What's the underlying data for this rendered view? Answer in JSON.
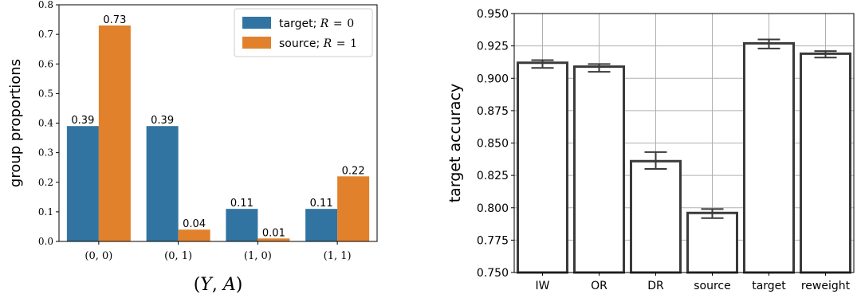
{
  "chart_data": [
    {
      "type": "bar",
      "title": "",
      "xlabel": "(Y, A)",
      "ylabel": "group proportions",
      "ylim": [
        0,
        0.8
      ],
      "yticks": [
        "0.0",
        "0.1",
        "0.2",
        "0.3",
        "0.4",
        "0.5",
        "0.6",
        "0.7",
        "0.8"
      ],
      "categories": [
        "(0, 0)",
        "(0, 1)",
        "(1, 0)",
        "(1, 1)"
      ],
      "series": [
        {
          "name": "target; R = 0",
          "values": [
            0.39,
            0.39,
            0.11,
            0.11
          ],
          "labels": [
            "0.39",
            "0.39",
            "0.11",
            "0.11"
          ],
          "color": "#3274a1"
        },
        {
          "name": "source; R = 1",
          "values": [
            0.73,
            0.04,
            0.01,
            0.22
          ],
          "labels": [
            "0.73",
            "0.04",
            "0.01",
            "0.22"
          ],
          "color": "#e1812c"
        }
      ],
      "grid": false,
      "legend": "top-right"
    },
    {
      "type": "bar",
      "title": "",
      "xlabel": "",
      "ylabel": "target accuracy",
      "ylim": [
        0.75,
        0.95
      ],
      "yticks": [
        "0.750",
        "0.775",
        "0.800",
        "0.825",
        "0.850",
        "0.875",
        "0.900",
        "0.925",
        "0.950"
      ],
      "categories": [
        "IW",
        "OR",
        "DR",
        "source",
        "target",
        "reweight"
      ],
      "values": [
        0.912,
        0.909,
        0.836,
        0.796,
        0.927,
        0.919
      ],
      "error_low": [
        0.908,
        0.905,
        0.83,
        0.792,
        0.923,
        0.916
      ],
      "error_high": [
        0.914,
        0.911,
        0.843,
        0.799,
        0.93,
        0.921
      ],
      "bar_fill": "#ffffff",
      "bar_edge": "#3a3a3a",
      "grid": true
    }
  ]
}
